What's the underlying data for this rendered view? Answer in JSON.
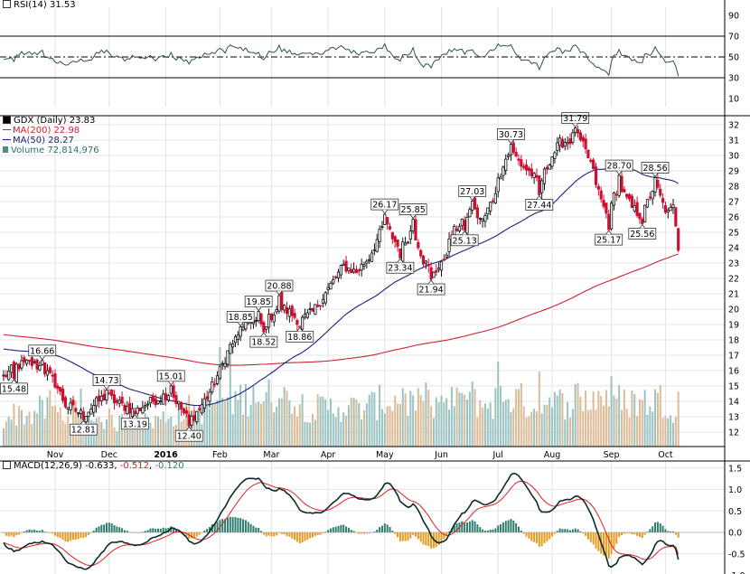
{
  "chart_data": {
    "type": "candlestick-stock-chart",
    "colors": {
      "up_candle": "#111111",
      "down_candle": "#cc1133",
      "ma200": "#cc2233",
      "ma50": "#1a237e",
      "volume_up": "#8fbcbb",
      "volume_down": "#d8b48c",
      "rsi_line": "#2f4f4f",
      "macd_line": "#0d2b2b",
      "macd_signal": "#dd2222",
      "hist_pos": "#2e7d6e",
      "hist_neg": "#e69a1e"
    },
    "rsi": {
      "label": "RSI(14) 31.53",
      "levels": [
        70,
        50,
        30
      ],
      "y_ticks": [
        "90",
        "70",
        "50",
        "30",
        "10"
      ],
      "ylim": [
        0,
        100
      ]
    },
    "price": {
      "legend": {
        "title": "GDX (Daily) 23.83",
        "ma200": "MA(200) 22.98",
        "ma50": "MA(50) 28.27",
        "volume": "Volume 72,814,976"
      },
      "y_ticks": [
        "32",
        "31",
        "30",
        "29",
        "28",
        "27",
        "26",
        "25",
        "24",
        "23",
        "22",
        "21",
        "20",
        "19",
        "18",
        "17",
        "16",
        "15",
        "14",
        "13",
        "12"
      ],
      "ylim": [
        11.3,
        32.7
      ],
      "annotations": [
        {
          "text": "16.66",
          "x": 15,
          "y": 16.66
        },
        {
          "text": "15.48",
          "x": 4,
          "y": 15.48
        },
        {
          "text": "14.73",
          "x": 40,
          "y": 14.73
        },
        {
          "text": "15.01",
          "x": 65,
          "y": 15.01
        },
        {
          "text": "12.81",
          "x": 31,
          "y": 12.81
        },
        {
          "text": "13.19",
          "x": 51,
          "y": 13.19
        },
        {
          "text": "12.40",
          "x": 72,
          "y": 12.4
        },
        {
          "text": "18.85",
          "x": 92,
          "y": 18.85
        },
        {
          "text": "19.85",
          "x": 99,
          "y": 19.85
        },
        {
          "text": "20.88",
          "x": 107,
          "y": 20.88
        },
        {
          "text": "18.52",
          "x": 101,
          "y": 18.52
        },
        {
          "text": "18.86",
          "x": 115,
          "y": 18.86
        },
        {
          "text": "26.17",
          "x": 148,
          "y": 26.17
        },
        {
          "text": "25.85",
          "x": 159,
          "y": 25.85
        },
        {
          "text": "23.34",
          "x": 154,
          "y": 23.34
        },
        {
          "text": "21.94",
          "x": 166,
          "y": 21.94
        },
        {
          "text": "27.03",
          "x": 182,
          "y": 27.03
        },
        {
          "text": "25.13",
          "x": 179,
          "y": 25.13
        },
        {
          "text": "30.73",
          "x": 197,
          "y": 30.73
        },
        {
          "text": "31.79",
          "x": 222,
          "y": 31.79
        },
        {
          "text": "27.44",
          "x": 208,
          "y": 27.44
        },
        {
          "text": "28.70",
          "x": 239,
          "y": 28.7
        },
        {
          "text": "25.17",
          "x": 235,
          "y": 25.17
        },
        {
          "text": "28.56",
          "x": 253,
          "y": 28.56
        },
        {
          "text": "25.56",
          "x": 248,
          "y": 25.56
        }
      ]
    },
    "x_axis": {
      "labels": [
        {
          "text": "Nov",
          "x": 20
        },
        {
          "text": "Dec",
          "x": 41
        },
        {
          "text": "2016",
          "x": 63
        },
        {
          "text": "Feb",
          "x": 84
        },
        {
          "text": "Mar",
          "x": 104
        },
        {
          "text": "Apr",
          "x": 126
        },
        {
          "text": "May",
          "x": 148
        },
        {
          "text": "Jun",
          "x": 170
        },
        {
          "text": "Jul",
          "x": 192
        },
        {
          "text": "Aug",
          "x": 213
        },
        {
          "text": "Sep",
          "x": 236
        },
        {
          "text": "Oct",
          "x": 257
        }
      ]
    },
    "macd": {
      "label_prefix": "MACD(12,26,9)",
      "macd_value": "-0.633",
      "signal_value": "-0.512",
      "hist_value": "-0.120",
      "y_ticks": [
        "1.5",
        "1.0",
        "0.5",
        "0.0",
        "-0.5",
        "-1.0"
      ],
      "ylim": [
        -1.05,
        1.55
      ]
    },
    "anchors": [
      {
        "x": 0,
        "p": 15.6,
        "v": 33
      },
      {
        "x": 5,
        "p": 16.3,
        "v": 40
      },
      {
        "x": 10,
        "p": 16.5,
        "v": 38
      },
      {
        "x": 15,
        "p": 16.2,
        "v": 45
      },
      {
        "x": 20,
        "p": 15.2,
        "v": 42
      },
      {
        "x": 24,
        "p": 13.8,
        "v": 38
      },
      {
        "x": 28,
        "p": 13.4,
        "v": 32
      },
      {
        "x": 31,
        "p": 13.1,
        "v": 35
      },
      {
        "x": 36,
        "p": 13.9,
        "v": 30
      },
      {
        "x": 40,
        "p": 14.4,
        "v": 34
      },
      {
        "x": 44,
        "p": 13.9,
        "v": 28
      },
      {
        "x": 48,
        "p": 13.6,
        "v": 32
      },
      {
        "x": 51,
        "p": 13.3,
        "v": 36
      },
      {
        "x": 55,
        "p": 13.8,
        "v": 30
      },
      {
        "x": 60,
        "p": 14.2,
        "v": 32
      },
      {
        "x": 65,
        "p": 14.6,
        "v": 38
      },
      {
        "x": 69,
        "p": 13.5,
        "v": 40
      },
      {
        "x": 72,
        "p": 12.7,
        "v": 45
      },
      {
        "x": 76,
        "p": 13.5,
        "v": 42
      },
      {
        "x": 80,
        "p": 14.6,
        "v": 46
      },
      {
        "x": 84,
        "p": 16.0,
        "v": 60
      },
      {
        "x": 88,
        "p": 17.6,
        "v": 55
      },
      {
        "x": 92,
        "p": 18.4,
        "v": 58
      },
      {
        "x": 96,
        "p": 19.3,
        "v": 60
      },
      {
        "x": 101,
        "p": 18.9,
        "v": 55
      },
      {
        "x": 104,
        "p": 19.6,
        "v": 62
      },
      {
        "x": 107,
        "p": 20.2,
        "v": 58
      },
      {
        "x": 111,
        "p": 19.8,
        "v": 55
      },
      {
        "x": 115,
        "p": 19.2,
        "v": 52
      },
      {
        "x": 120,
        "p": 19.8,
        "v": 45
      },
      {
        "x": 126,
        "p": 21.3,
        "v": 46
      },
      {
        "x": 132,
        "p": 22.8,
        "v": 48
      },
      {
        "x": 137,
        "p": 22.4,
        "v": 45
      },
      {
        "x": 142,
        "p": 23.4,
        "v": 48
      },
      {
        "x": 148,
        "p": 25.6,
        "v": 55
      },
      {
        "x": 154,
        "p": 23.8,
        "v": 55
      },
      {
        "x": 159,
        "p": 25.3,
        "v": 52
      },
      {
        "x": 163,
        "p": 23.2,
        "v": 48
      },
      {
        "x": 166,
        "p": 22.4,
        "v": 50
      },
      {
        "x": 170,
        "p": 22.8,
        "v": 46
      },
      {
        "x": 174,
        "p": 24.8,
        "v": 52
      },
      {
        "x": 178,
        "p": 25.8,
        "v": 55
      },
      {
        "x": 182,
        "p": 26.5,
        "v": 58
      },
      {
        "x": 186,
        "p": 25.7,
        "v": 50
      },
      {
        "x": 190,
        "p": 27.2,
        "v": 52
      },
      {
        "x": 194,
        "p": 29.5,
        "v": 62
      },
      {
        "x": 197,
        "p": 30.3,
        "v": 60
      },
      {
        "x": 201,
        "p": 29.4,
        "v": 55
      },
      {
        "x": 205,
        "p": 28.8,
        "v": 50
      },
      {
        "x": 208,
        "p": 28.0,
        "v": 52
      },
      {
        "x": 212,
        "p": 29.7,
        "v": 50
      },
      {
        "x": 216,
        "p": 30.8,
        "v": 52
      },
      {
        "x": 220,
        "p": 31.0,
        "v": 55
      },
      {
        "x": 222,
        "p": 31.4,
        "v": 60
      },
      {
        "x": 225,
        "p": 30.6,
        "v": 58
      },
      {
        "x": 228,
        "p": 29.5,
        "v": 55
      },
      {
        "x": 231,
        "p": 27.6,
        "v": 62
      },
      {
        "x": 233,
        "p": 26.6,
        "v": 60
      },
      {
        "x": 235,
        "p": 25.8,
        "v": 66
      },
      {
        "x": 237,
        "p": 27.4,
        "v": 58
      },
      {
        "x": 239,
        "p": 28.2,
        "v": 55
      },
      {
        "x": 241,
        "p": 27.4,
        "v": 52
      },
      {
        "x": 244,
        "p": 26.6,
        "v": 55
      },
      {
        "x": 248,
        "p": 26.0,
        "v": 52
      },
      {
        "x": 251,
        "p": 27.4,
        "v": 55
      },
      {
        "x": 253,
        "p": 28.2,
        "v": 58
      },
      {
        "x": 256,
        "p": 26.8,
        "v": 55
      },
      {
        "x": 258,
        "p": 26.2,
        "v": 50
      },
      {
        "x": 260,
        "p": 26.6,
        "v": 48
      },
      {
        "x": 262,
        "p": 24.6,
        "v": 62
      }
    ]
  }
}
